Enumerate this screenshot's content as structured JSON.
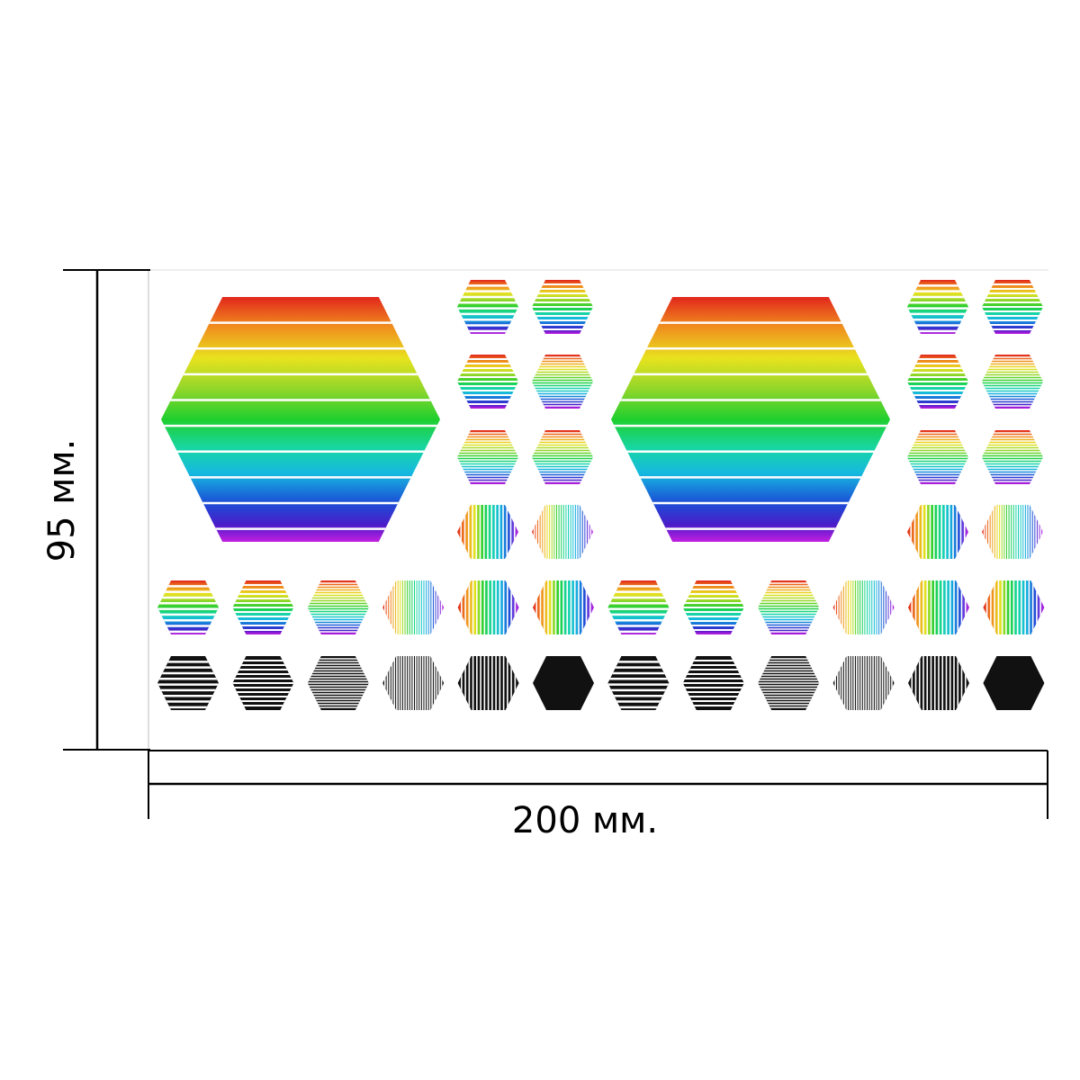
{
  "dimensions": {
    "height_label": "95 мм.",
    "width_label": "200 мм."
  },
  "sticker_sheet": {
    "width_mm": 200,
    "height_mm": 95,
    "stripe_colors": [
      "#e1261c",
      "#f08c1e",
      "#f2e11e",
      "#8ed62a",
      "#1fcf2e",
      "#17d6a6",
      "#16b8e0",
      "#1b4fd6",
      "#4a1cc9",
      "#b41ee6",
      "#e01ea6"
    ],
    "mono_color": "#111111"
  }
}
